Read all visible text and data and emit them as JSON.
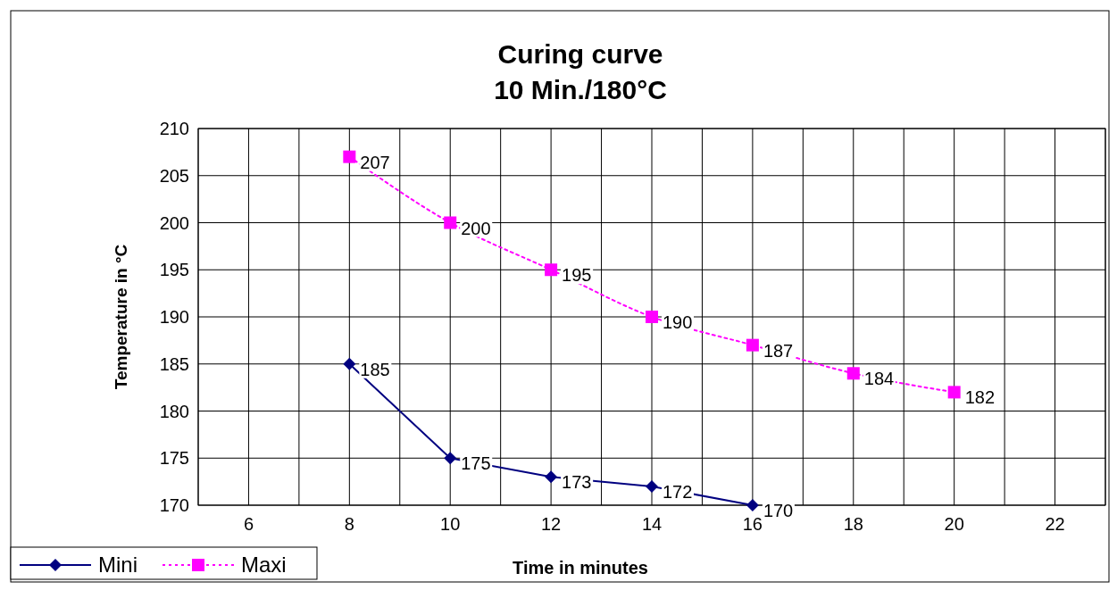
{
  "chart_data": {
    "type": "line",
    "title": "Curing curve",
    "subtitle": "10 Min./180°C",
    "xlabel": "Time in minutes",
    "ylabel": "Temperature in °C",
    "xlim": [
      5,
      23
    ],
    "xticks": [
      {
        "value": 5,
        "label": null
      },
      6,
      {
        "value": 7,
        "label": null
      },
      8,
      {
        "value": 9,
        "label": null
      },
      10,
      {
        "value": 11,
        "label": null
      },
      12,
      {
        "value": 13,
        "label": null
      },
      14,
      {
        "value": 15,
        "label": null
      },
      16,
      {
        "value": 17,
        "label": null
      },
      18,
      {
        "value": 19,
        "label": null
      },
      20,
      {
        "value": 21,
        "label": null
      },
      22,
      {
        "value": 23,
        "label": null
      }
    ],
    "ylim": [
      170,
      210
    ],
    "yticks": [
      170,
      175,
      180,
      185,
      190,
      195,
      200,
      205,
      210
    ],
    "grid": true,
    "legend": "bottom left",
    "data_labels": true,
    "series": [
      {
        "name": "Mini",
        "color": "#000080",
        "marker": "diamond",
        "line_style": "solid",
        "x": [
          8,
          10,
          12,
          14,
          16
        ],
        "values": [
          185,
          175,
          173,
          172,
          170
        ]
      },
      {
        "name": "Maxi",
        "color": "#ff00ff",
        "marker": "square",
        "line_style": "dotted",
        "x": [
          8,
          10,
          12,
          14,
          16,
          18,
          20
        ],
        "values": [
          207,
          200,
          195,
          190,
          187,
          184,
          182
        ]
      }
    ]
  }
}
